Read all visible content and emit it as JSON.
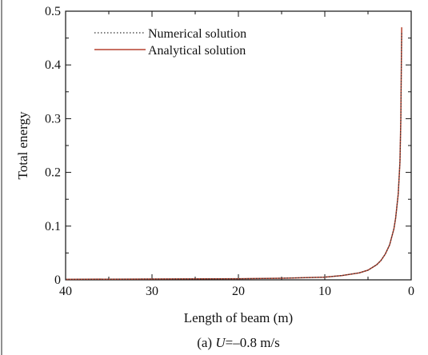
{
  "chart_data": {
    "type": "line",
    "xlabel": "Length of beam (m)",
    "ylabel": "Total energy",
    "caption_prefix": "(a) ",
    "caption_var": "U",
    "caption_suffix": "=–0.8 m/s",
    "xlim": [
      40,
      0
    ],
    "ylim": [
      0,
      0.5
    ],
    "x_ticks": [
      "40",
      "30",
      "20",
      "10",
      "0"
    ],
    "y_ticks": [
      "0",
      "0.1",
      "0.2",
      "0.3",
      "0.4",
      "0.5"
    ],
    "x_tick_values": [
      40,
      30,
      20,
      10,
      0
    ],
    "y_tick_values": [
      0,
      0.1,
      0.2,
      0.3,
      0.4,
      0.5
    ],
    "legend_position": "top-left",
    "series": [
      {
        "name": "Numerical solution",
        "color": "#333333",
        "style": "dotted",
        "x": [
          40,
          30,
          20,
          15,
          10,
          8,
          6,
          5,
          4,
          3.5,
          3,
          2.5,
          2,
          1.8,
          1.5,
          1.3,
          1.2,
          1.1
        ],
        "y": [
          0.001,
          0.0015,
          0.002,
          0.003,
          0.005,
          0.008,
          0.013,
          0.018,
          0.028,
          0.036,
          0.048,
          0.065,
          0.095,
          0.115,
          0.16,
          0.22,
          0.3,
          0.46
        ]
      },
      {
        "name": "Analytical solution",
        "color": "#b5412e",
        "style": "solid",
        "x": [
          40,
          30,
          20,
          15,
          10,
          8,
          6,
          5,
          4,
          3.5,
          3,
          2.5,
          2,
          1.8,
          1.5,
          1.3,
          1.2,
          1.1
        ],
        "y": [
          0.001,
          0.0015,
          0.002,
          0.003,
          0.005,
          0.008,
          0.013,
          0.018,
          0.028,
          0.036,
          0.048,
          0.065,
          0.095,
          0.115,
          0.16,
          0.22,
          0.3,
          0.47
        ]
      }
    ]
  }
}
